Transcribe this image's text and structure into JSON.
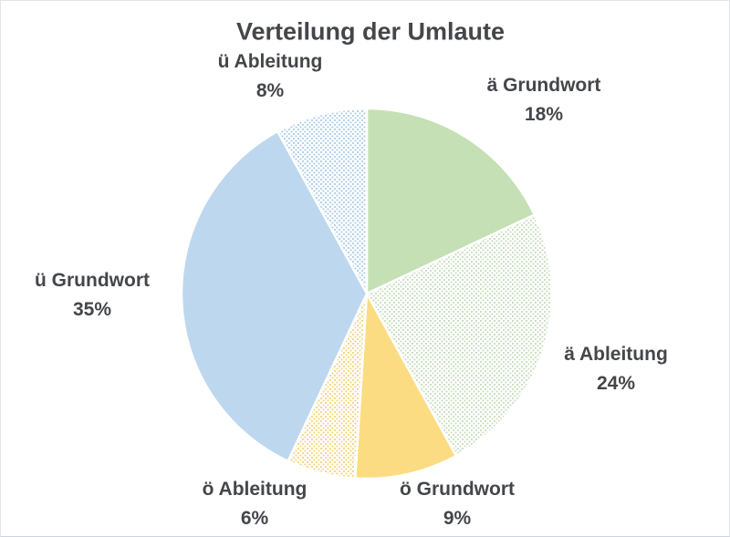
{
  "title": "Verteilung der Umlaute",
  "chart_data": {
    "type": "pie",
    "title": "Verteilung der Umlaute",
    "direction": "clockwise",
    "start_angle_deg": 0,
    "legend_position": "outside-data-labels",
    "data_label_format": "category-name + percentage",
    "slices": [
      {
        "label": "ä Grundwort",
        "value": 18,
        "pct_label": "18%",
        "color": "#c5e0b4",
        "fill_style": "solid",
        "pattern_color": "#c5e0b4"
      },
      {
        "label": "ä Ableitung",
        "value": 24,
        "pct_label": "24%",
        "color": "#c5e0b4",
        "fill_style": "dotted",
        "pattern_color": "#c9ddbc"
      },
      {
        "label": "ö Grundwort",
        "value": 9,
        "pct_label": "9%",
        "color": "#fcdc82",
        "fill_style": "solid",
        "pattern_color": "#fcdc82"
      },
      {
        "label": "ö Ableitung",
        "value": 6,
        "pct_label": "6%",
        "color": "#fcdc82",
        "fill_style": "dotted",
        "pattern_color": "#f2d47e"
      },
      {
        "label": "ü Grundwort",
        "value": 35,
        "pct_label": "35%",
        "color": "#bdd7ee",
        "fill_style": "solid",
        "pattern_color": "#bdd7ee"
      },
      {
        "label": "ü Ableitung",
        "value": 8,
        "pct_label": "8%",
        "color": "#bdd7ee",
        "fill_style": "dotted",
        "pattern_color": "#abccea"
      }
    ],
    "slice_border_color": "#ffffff",
    "text_color": "#44464a",
    "background_color": "#ffffff"
  }
}
